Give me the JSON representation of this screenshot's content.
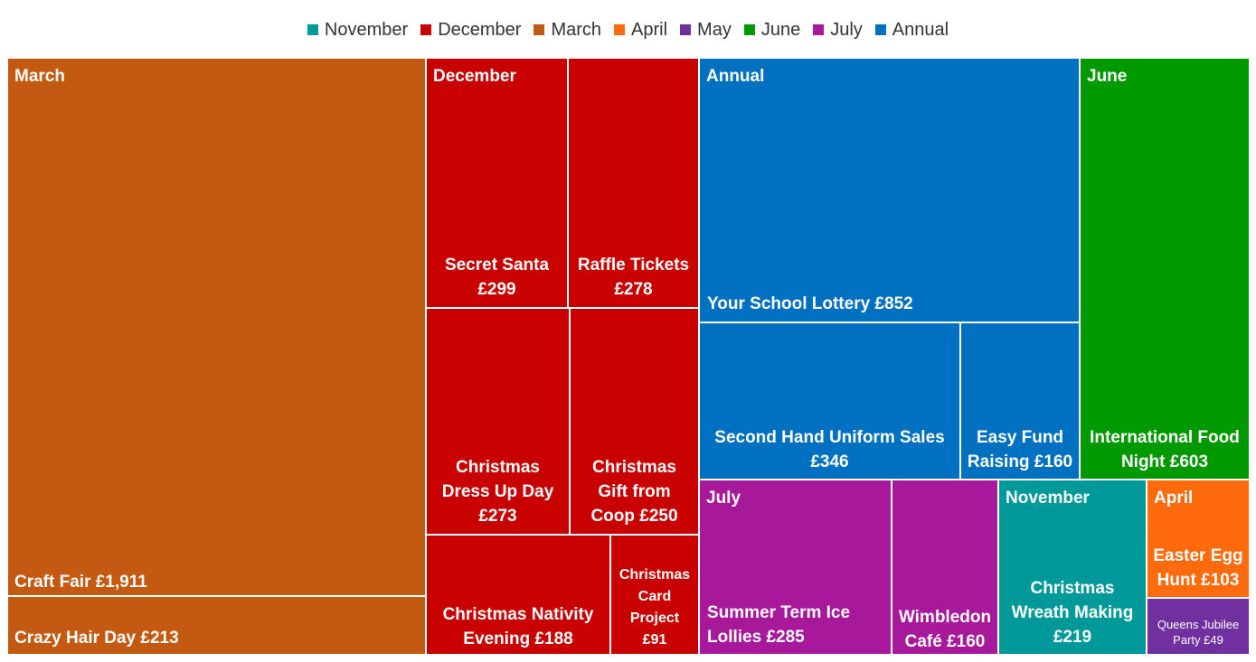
{
  "legend": [
    {
      "label": "November",
      "color": "#00999A"
    },
    {
      "label": "December",
      "color": "#C80000"
    },
    {
      "label": "March",
      "color": "#C45911"
    },
    {
      "label": "April",
      "color": "#FF6A0D"
    },
    {
      "label": "May",
      "color": "#7030A0"
    },
    {
      "label": "June",
      "color": "#009900"
    },
    {
      "label": "July",
      "color": "#A8189A"
    },
    {
      "label": "Annual",
      "color": "#0070C0"
    }
  ],
  "chart_data": {
    "type": "treemap",
    "title": "",
    "groups": [
      {
        "name": "March",
        "color": "#C45911",
        "items": [
          {
            "name": "Craft Fair",
            "value": 1911,
            "label": "Craft Fair £1,911"
          },
          {
            "name": "Crazy Hair Day",
            "value": 213,
            "label": "Crazy Hair Day £213"
          }
        ]
      },
      {
        "name": "December",
        "color": "#C80000",
        "items": [
          {
            "name": "Secret Santa",
            "value": 299,
            "label": "Secret Santa\n£299"
          },
          {
            "name": "Raffle Tickets",
            "value": 278,
            "label": "Raffle Tickets\n£278"
          },
          {
            "name": "Christmas Dress Up Day",
            "value": 273,
            "label": "Christmas\nDress Up Day\n£273"
          },
          {
            "name": "Christmas Gift from Coop",
            "value": 250,
            "label": "Christmas\nGift from\nCoop £250"
          },
          {
            "name": "Christmas Nativity Evening",
            "value": 188,
            "label": "Christmas Nativity\nEvening £188"
          },
          {
            "name": "Christmas Card Project",
            "value": 91,
            "label": "Christmas\nCard\nProject\n£91"
          }
        ]
      },
      {
        "name": "Annual",
        "color": "#0070C0",
        "items": [
          {
            "name": "Your School Lottery",
            "value": 852,
            "label": "Your School Lottery £852"
          },
          {
            "name": "Second Hand Uniform Sales",
            "value": 346,
            "label": "Second Hand Uniform Sales\n£346"
          },
          {
            "name": "Easy Fund Raising",
            "value": 160,
            "label": "Easy Fund\nRaising £160"
          }
        ]
      },
      {
        "name": "June",
        "color": "#009900",
        "items": [
          {
            "name": "International Food Night",
            "value": 603,
            "label": "International Food\nNight £603"
          }
        ]
      },
      {
        "name": "July",
        "color": "#A8189A",
        "items": [
          {
            "name": "Summer Term Ice Lollies",
            "value": 285,
            "label": "Summer Term Ice\nLollies £285"
          },
          {
            "name": "Wimbledon Café",
            "value": 160,
            "label": "Wimbledon\nCafé £160"
          }
        ]
      },
      {
        "name": "November",
        "color": "#00999A",
        "items": [
          {
            "name": "Christmas Wreath Making",
            "value": 219,
            "label": "Christmas\nWreath Making\n£219"
          }
        ]
      },
      {
        "name": "April",
        "color": "#FF6A0D",
        "items": [
          {
            "name": "Easter Egg Hunt",
            "value": 103,
            "label": "Easter Egg\nHunt £103"
          }
        ]
      },
      {
        "name": "May",
        "color": "#7030A0",
        "items": [
          {
            "name": "Queens Jubilee Party",
            "value": 49,
            "label": "Queens Jubilee\nParty £49"
          }
        ]
      }
    ]
  }
}
